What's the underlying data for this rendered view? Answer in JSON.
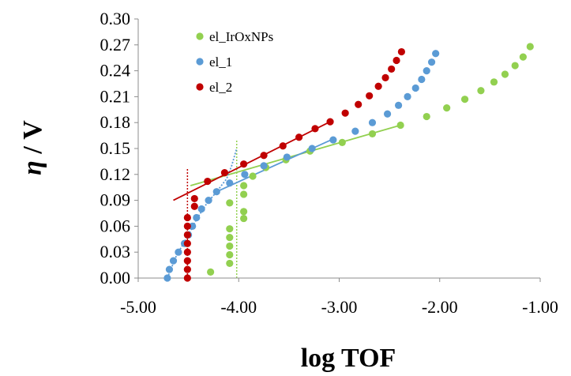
{
  "chart_data": {
    "type": "scatter",
    "xlabel": "log TOF",
    "ylabel_symbol": "η",
    "ylabel_unit": " / V",
    "xlim": [
      -5.0,
      -1.0
    ],
    "ylim": [
      0.0,
      0.3
    ],
    "xticks": [
      "-5.00",
      "-4.00",
      "-3.00",
      "-2.00",
      "-1.00"
    ],
    "yticks": [
      "0.00",
      "0.03",
      "0.06",
      "0.09",
      "0.12",
      "0.15",
      "0.18",
      "0.21",
      "0.24",
      "0.27",
      "0.30"
    ],
    "grid": false,
    "legend_position": "top-left",
    "series": [
      {
        "name": "el_IrOxNPs",
        "color": "#92d050",
        "points": [
          [
            -4.28,
            0.007
          ],
          [
            -4.09,
            0.017
          ],
          [
            -4.09,
            0.027
          ],
          [
            -4.09,
            0.037
          ],
          [
            -4.09,
            0.047
          ],
          [
            -4.09,
            0.057
          ],
          [
            -3.95,
            0.069
          ],
          [
            -3.95,
            0.077
          ],
          [
            -4.09,
            0.087
          ],
          [
            -3.95,
            0.097
          ],
          [
            -3.95,
            0.107
          ],
          [
            -3.86,
            0.118
          ],
          [
            -3.73,
            0.128
          ],
          [
            -3.53,
            0.137
          ],
          [
            -3.29,
            0.147
          ],
          [
            -2.97,
            0.157
          ],
          [
            -2.67,
            0.167
          ],
          [
            -2.39,
            0.177
          ],
          [
            -2.13,
            0.187
          ],
          [
            -1.93,
            0.197
          ],
          [
            -1.75,
            0.207
          ],
          [
            -1.59,
            0.217
          ],
          [
            -1.46,
            0.227
          ],
          [
            -1.35,
            0.236
          ],
          [
            -1.25,
            0.246
          ],
          [
            -1.17,
            0.256
          ],
          [
            -1.1,
            0.268
          ]
        ],
        "fit": {
          "type": "linear",
          "x1": -4.48,
          "y1": 0.107,
          "x2": -2.39,
          "y2": 0.177
        },
        "guide": {
          "x": -4.02,
          "y1": 0.0,
          "y2": 0.16
        }
      },
      {
        "name": "el_1",
        "color": "#5b9bd5",
        "points": [
          [
            -4.71,
            0.0
          ],
          [
            -4.69,
            0.01
          ],
          [
            -4.65,
            0.02
          ],
          [
            -4.6,
            0.03
          ],
          [
            -4.54,
            0.04
          ],
          [
            -4.5,
            0.05
          ],
          [
            -4.46,
            0.06
          ],
          [
            -4.42,
            0.07
          ],
          [
            -4.37,
            0.08
          ],
          [
            -4.3,
            0.09
          ],
          [
            -4.22,
            0.1
          ],
          [
            -4.09,
            0.11
          ],
          [
            -3.94,
            0.12
          ],
          [
            -3.75,
            0.13
          ],
          [
            -3.52,
            0.14
          ],
          [
            -3.27,
            0.15
          ],
          [
            -3.06,
            0.16
          ],
          [
            -2.84,
            0.17
          ],
          [
            -2.67,
            0.18
          ],
          [
            -2.52,
            0.19
          ],
          [
            -2.41,
            0.2
          ],
          [
            -2.32,
            0.21
          ],
          [
            -2.24,
            0.22
          ],
          [
            -2.18,
            0.23
          ],
          [
            -2.13,
            0.24
          ],
          [
            -2.08,
            0.25
          ],
          [
            -2.04,
            0.26
          ]
        ],
        "fit": {
          "type": "linear",
          "x1": -4.22,
          "y1": 0.1,
          "x2": -3.06,
          "y2": 0.161
        },
        "curve": [
          [
            -4.71,
            0.0
          ],
          [
            -4.62,
            0.026
          ],
          [
            -4.52,
            0.046
          ],
          [
            -4.42,
            0.068
          ],
          [
            -4.32,
            0.086
          ],
          [
            -4.22,
            0.1
          ],
          [
            -4.12,
            0.115
          ],
          [
            -4.07,
            0.13
          ],
          [
            -4.02,
            0.15
          ]
        ]
      },
      {
        "name": "el_2",
        "color": "#c00000",
        "points": [
          [
            -4.51,
            0.0
          ],
          [
            -4.51,
            0.01
          ],
          [
            -4.51,
            0.02
          ],
          [
            -4.51,
            0.03
          ],
          [
            -4.51,
            0.04
          ],
          [
            -4.51,
            0.05
          ],
          [
            -4.51,
            0.06
          ],
          [
            -4.51,
            0.07
          ],
          [
            -4.44,
            0.083
          ],
          [
            -4.44,
            0.092
          ],
          [
            -4.31,
            0.112
          ],
          [
            -4.14,
            0.122
          ],
          [
            -3.95,
            0.132
          ],
          [
            -3.75,
            0.142
          ],
          [
            -3.56,
            0.153
          ],
          [
            -3.4,
            0.163
          ],
          [
            -3.24,
            0.173
          ],
          [
            -3.09,
            0.181
          ],
          [
            -2.94,
            0.191
          ],
          [
            -2.81,
            0.201
          ],
          [
            -2.7,
            0.211
          ],
          [
            -2.61,
            0.222
          ],
          [
            -2.54,
            0.232
          ],
          [
            -2.48,
            0.242
          ],
          [
            -2.43,
            0.252
          ],
          [
            -2.38,
            0.262
          ]
        ],
        "fit": {
          "type": "linear",
          "x1": -4.65,
          "y1": 0.09,
          "x2": -3.09,
          "y2": 0.181
        },
        "guide": {
          "x": -4.51,
          "y1": 0.0,
          "y2": 0.128
        }
      }
    ]
  }
}
